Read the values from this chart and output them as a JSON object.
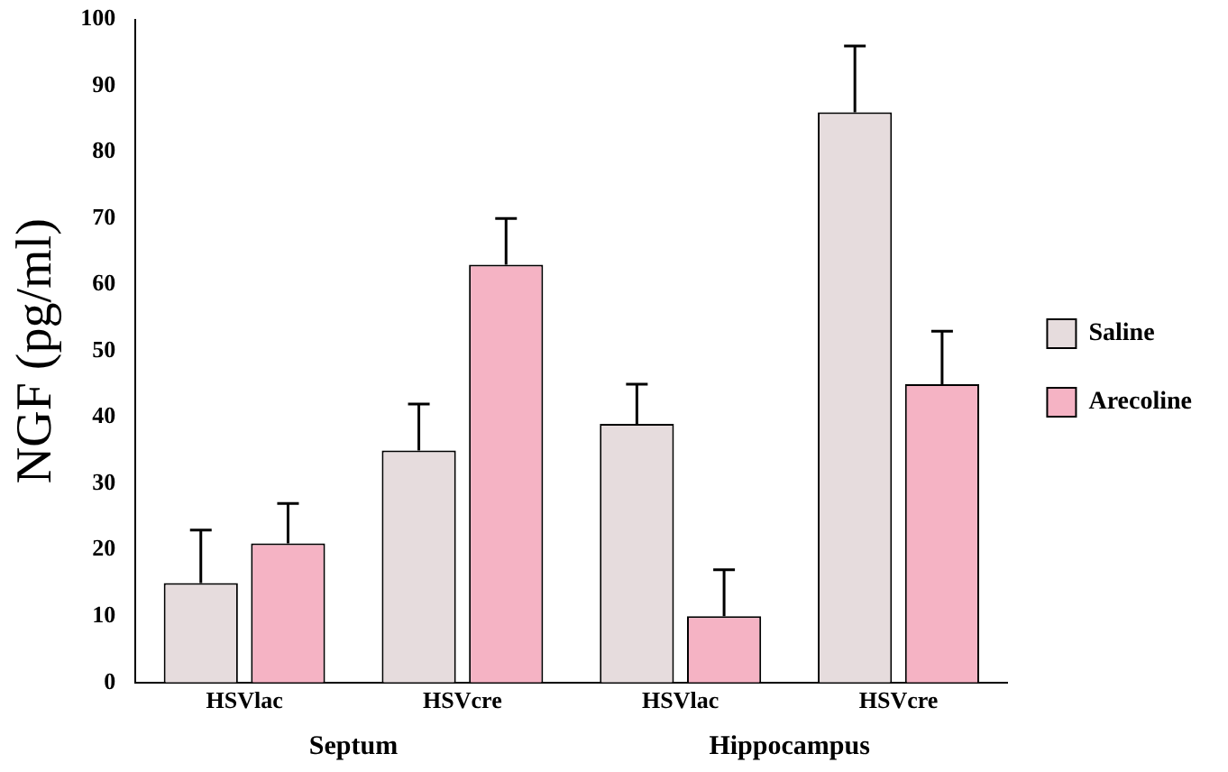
{
  "chart_data": {
    "type": "bar",
    "ylabel": "NGF (pg/ml)",
    "categories": [
      "HSVlac",
      "HSVcre",
      "HSVlac",
      "HSVcre"
    ],
    "series": [
      {
        "name": "Saline",
        "color": "#e6dcdd",
        "values": [
          15,
          35,
          39,
          86
        ],
        "errors": [
          [
            15,
            23
          ],
          [
            35,
            42
          ],
          [
            39,
            45
          ],
          [
            86,
            96
          ]
        ]
      },
      {
        "name": "Arecoline",
        "color": "#f5b3c4",
        "values": [
          21,
          63,
          10,
          45
        ],
        "errors": [
          [
            21,
            27
          ],
          [
            63,
            70
          ],
          [
            10,
            17
          ],
          [
            45,
            53
          ]
        ]
      }
    ],
    "ylim": [
      0,
      100
    ],
    "yticks": [
      0,
      10,
      20,
      30,
      40,
      50,
      60,
      70,
      80,
      90,
      100
    ],
    "grid": false,
    "legend": "right",
    "annotations": [
      "Septum",
      "Hippocampus"
    ]
  }
}
